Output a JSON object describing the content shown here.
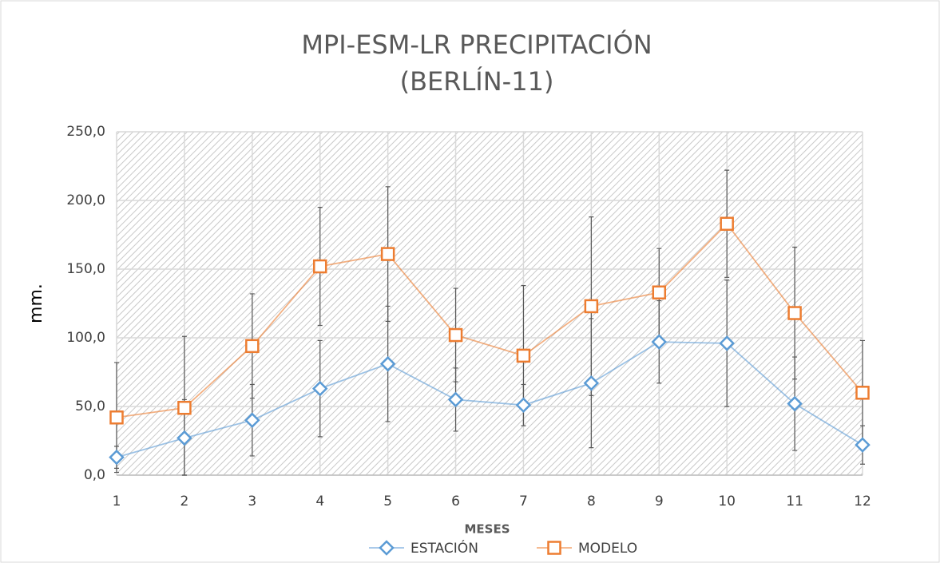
{
  "chart_data": {
    "type": "line",
    "title": [
      "MPI-ESM-LR PRECIPITACIÓN",
      "(BERLÍN-11)"
    ],
    "x_label": "MESES",
    "y_label": "mm.",
    "categories": [
      "1",
      "2",
      "3",
      "4",
      "5",
      "6",
      "7",
      "8",
      "9",
      "10",
      "11",
      "12"
    ],
    "series": [
      {
        "name": "ESTACIÓN",
        "color": "#5b9bd5",
        "marker": "diamond",
        "values": [
          13,
          27,
          40,
          63,
          81,
          55,
          51,
          67,
          97,
          96,
          52,
          22
        ],
        "errors": [
          8,
          28,
          26,
          35,
          42,
          23,
          15,
          47,
          30,
          46,
          34,
          14
        ]
      },
      {
        "name": "MODELO",
        "color": "#ed7d31",
        "marker": "square",
        "values": [
          42,
          49,
          94,
          152,
          161,
          102,
          87,
          123,
          133,
          183,
          118,
          60
        ],
        "errors": [
          40,
          52,
          38,
          43,
          49,
          34,
          51,
          65,
          32,
          39,
          48,
          38
        ]
      }
    ],
    "ylim": [
      0,
      250
    ],
    "yticks": [
      {
        "value": 0,
        "label": "0,0"
      },
      {
        "value": 50,
        "label": "50,0"
      },
      {
        "value": 100,
        "label": "100,0"
      },
      {
        "value": 150,
        "label": "150,0"
      },
      {
        "value": 200,
        "label": "200,0"
      },
      {
        "value": 250,
        "label": "250,0"
      }
    ],
    "grid": true,
    "legend": "bottom"
  }
}
